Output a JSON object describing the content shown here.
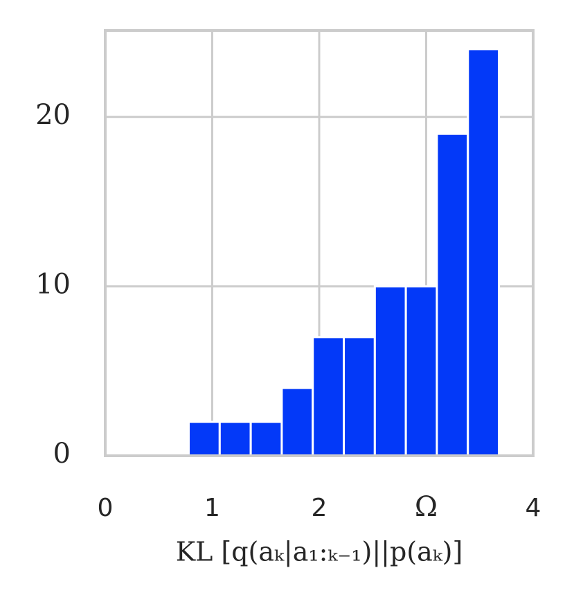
{
  "chart_data": {
    "type": "histogram",
    "xlabel": "KL [q(aₖ|a₁:ₖ₋₁)||p(aₖ)]",
    "bins": [
      0.78,
      1.07,
      1.36,
      1.65,
      1.94,
      2.23,
      2.52,
      2.81,
      3.1,
      3.39,
      3.68
    ],
    "values": [
      2,
      2,
      2,
      4,
      7,
      7,
      10,
      10,
      19,
      24
    ],
    "color": "#0339f8",
    "xlim": [
      0,
      4
    ],
    "xticks": [
      0,
      1,
      2,
      {
        "value": 3,
        "label": "Ω"
      },
      4
    ],
    "ylim": [
      0,
      25.1
    ],
    "yticks": [
      0,
      10,
      20
    ],
    "grid": true
  }
}
